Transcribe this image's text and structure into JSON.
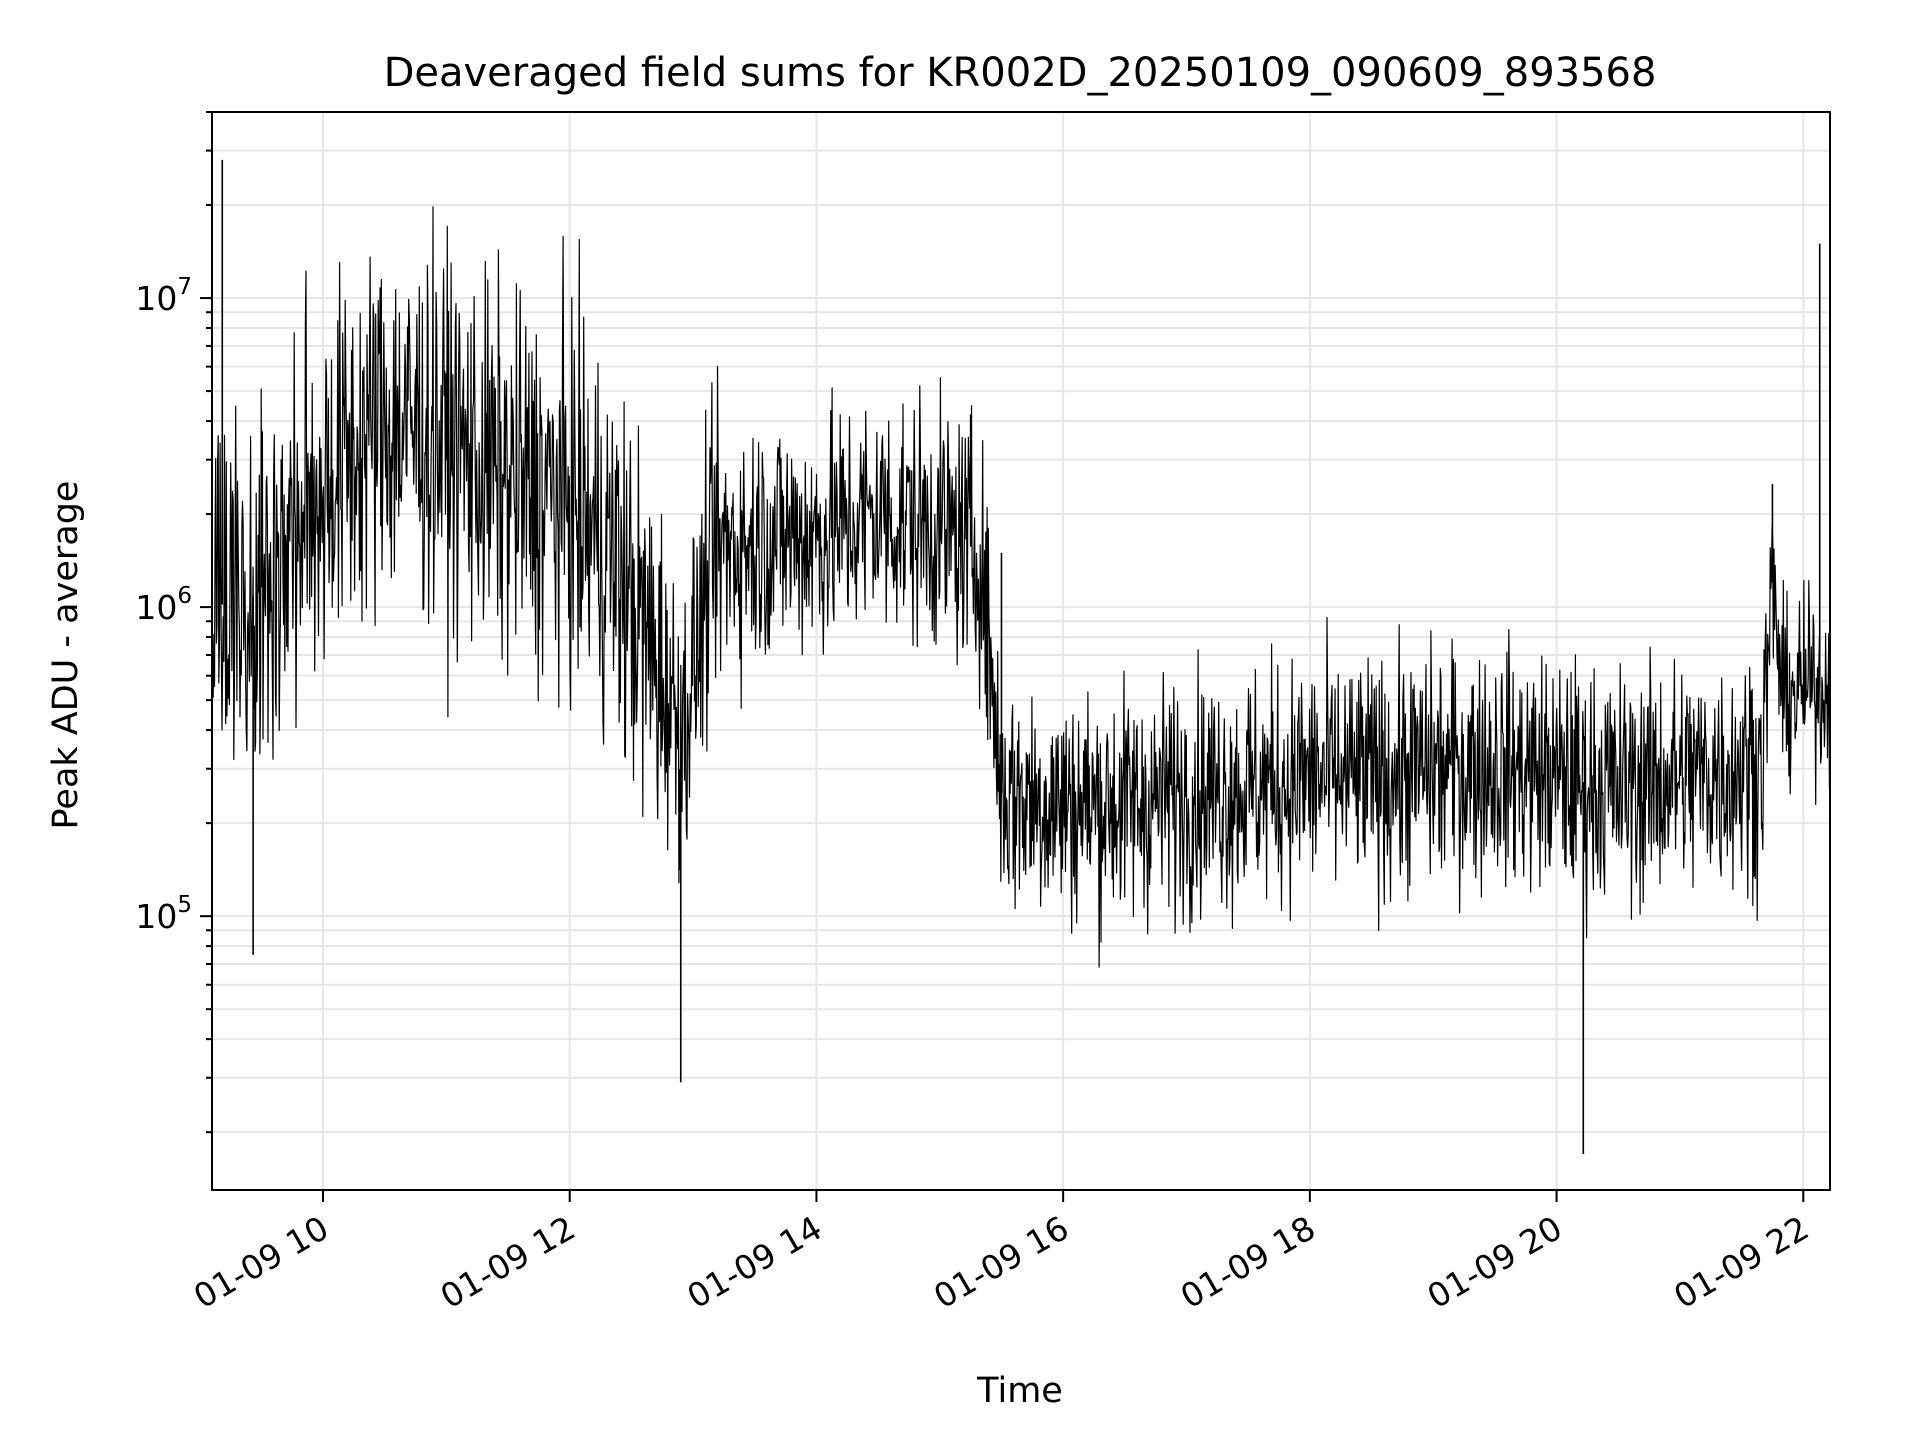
{
  "chart_data": {
    "type": "line",
    "title": "Deaveraged field sums for KR002D_20250109_090609_893568",
    "xlabel": "Time",
    "ylabel": "Peak ADU - average",
    "yscale": "log",
    "grid": true,
    "line_color": "#000000",
    "grid_color": "#e6e6e6",
    "xlim": [
      "2025-01-09 09:06",
      "2025-01-09 22:13"
    ],
    "ylim": [
      13000,
      40000000
    ],
    "x_ticks": [
      "2025-01-09 10:00",
      "2025-01-09 12:00",
      "2025-01-09 14:00",
      "2025-01-09 16:00",
      "2025-01-09 18:00",
      "2025-01-09 20:00",
      "2025-01-09 22:00"
    ],
    "x_tick_labels": [
      "01-09 10",
      "01-09 12",
      "01-09 14",
      "01-09 16",
      "01-09 18",
      "01-09 20",
      "01-09 22"
    ],
    "y_tick_labels": [
      {
        "base": "10",
        "exp": "5",
        "value": 100000
      },
      {
        "base": "10",
        "exp": "6",
        "value": 1000000
      },
      {
        "base": "10",
        "exp": "7",
        "value": 10000000
      }
    ],
    "series": [
      {
        "x": [
          "2025-01-09 09:06",
          "2025-01-09 09:30",
          "2025-01-09 10:00",
          "2025-01-09 10:30",
          "2025-01-09 11:00",
          "2025-01-09 11:30",
          "2025-01-09 12:00",
          "2025-01-09 12:20",
          "2025-01-09 12:40",
          "2025-01-09 12:55",
          "2025-01-09 13:10",
          "2025-01-09 13:40",
          "2025-01-09 14:00",
          "2025-01-09 14:30",
          "2025-01-09 15:00",
          "2025-01-09 15:20",
          "2025-01-09 15:30",
          "2025-01-09 16:00",
          "2025-01-09 16:30",
          "2025-01-09 17:00",
          "2025-01-09 17:30",
          "2025-01-09 18:00",
          "2025-01-09 18:30",
          "2025-01-09 19:00",
          "2025-01-09 19:30",
          "2025-01-09 20:00",
          "2025-01-09 20:30",
          "2025-01-09 21:00",
          "2025-01-09 21:30",
          "2025-01-09 21:40",
          "2025-01-09 21:45",
          "2025-01-09 21:50",
          "2025-01-09 22:00",
          "2025-01-09 22:13"
        ],
        "y": [
          1000000,
          1100000,
          2500000,
          4000000,
          3500000,
          2500000,
          2200000,
          1500000,
          700000,
          400000,
          1500000,
          1700000,
          1700000,
          2000000,
          1800000,
          1500000,
          250000,
          230000,
          230000,
          250000,
          260000,
          280000,
          280000,
          300000,
          310000,
          280000,
          260000,
          280000,
          300000,
          320000,
          1200000,
          500000,
          550000,
          550000
        ]
      }
    ],
    "annotations": [
      {
        "x": "2025-01-09 09:11",
        "y": 28000000
      },
      {
        "x": "2025-01-09 09:26",
        "y": 75000
      },
      {
        "x": "2025-01-09 12:54",
        "y": 29000
      },
      {
        "x": "2025-01-09 15:15",
        "y": 4200000
      },
      {
        "x": "2025-01-09 15:30",
        "y": 1500000
      },
      {
        "x": "2025-01-09 20:13",
        "y": 17000
      },
      {
        "x": "2025-01-09 21:45",
        "y": 2500000
      },
      {
        "x": "2025-01-09 22:08",
        "y": 15000000
      }
    ]
  }
}
